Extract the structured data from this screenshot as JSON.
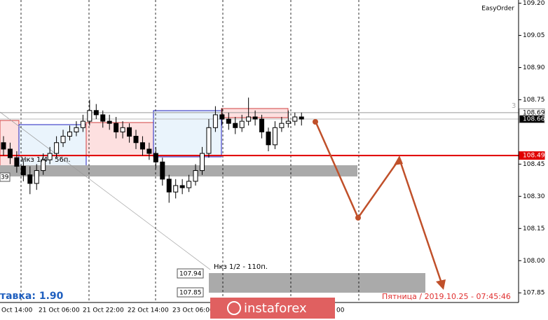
{
  "chart_data": {
    "type": "candlestick",
    "ylim": [
      107.805,
      109.215
    ],
    "yticks": [
      {
        "value": 109.2,
        "label": "109.20"
      },
      {
        "value": 109.05,
        "label": "109.05"
      },
      {
        "value": 108.9,
        "label": "108.90"
      },
      {
        "value": 108.75,
        "label": "108.75"
      },
      {
        "value": 108.45,
        "label": "108.45"
      },
      {
        "value": 108.3,
        "label": "108.30"
      },
      {
        "value": 108.15,
        "label": "108.15"
      },
      {
        "value": 108.0,
        "label": "108.00"
      },
      {
        "value": 107.85,
        "label": "107.85"
      }
    ],
    "x_labels": [
      "Oct 14:00",
      "21 Oct 06:00",
      "21 Oct 22:00",
      "22 Oct 14:00",
      "23 Oct 06:00",
      "00"
    ],
    "open": [
      108.55,
      108.52,
      108.48,
      108.44,
      108.4,
      108.36,
      108.42,
      108.47,
      108.5,
      108.55,
      108.58,
      108.6,
      108.62,
      108.65,
      108.7,
      108.68,
      108.65,
      108.64,
      108.6,
      108.62,
      108.58,
      108.55,
      108.52,
      108.5,
      108.46,
      108.38,
      108.32,
      108.35,
      108.34,
      108.37,
      108.42,
      108.5,
      108.62,
      108.68,
      108.66,
      108.64,
      108.62,
      108.65,
      108.67,
      108.66,
      108.6,
      108.54,
      108.62,
      108.64,
      108.65,
      108.67
    ],
    "high": [
      108.58,
      108.55,
      108.51,
      108.47,
      108.44,
      108.45,
      108.5,
      108.53,
      108.58,
      108.61,
      108.63,
      108.65,
      108.68,
      108.75,
      108.73,
      108.7,
      108.68,
      108.67,
      108.65,
      108.64,
      108.61,
      108.58,
      108.55,
      108.53,
      108.48,
      108.4,
      108.38,
      108.38,
      108.4,
      108.45,
      108.53,
      108.66,
      108.72,
      108.71,
      108.69,
      108.67,
      108.68,
      108.76,
      108.7,
      108.68,
      108.62,
      108.65,
      108.67,
      108.7,
      108.69,
      108.69
    ],
    "low": [
      108.49,
      108.45,
      108.41,
      108.37,
      108.31,
      108.33,
      108.4,
      108.45,
      108.48,
      108.53,
      108.56,
      108.58,
      108.6,
      108.63,
      108.66,
      108.62,
      108.61,
      108.57,
      108.57,
      108.55,
      108.52,
      108.49,
      108.47,
      108.43,
      108.35,
      108.27,
      108.29,
      108.31,
      108.32,
      108.35,
      108.4,
      108.48,
      108.6,
      108.63,
      108.61,
      108.59,
      108.6,
      108.63,
      108.63,
      108.57,
      108.51,
      108.52,
      108.6,
      108.62,
      108.63,
      108.63
    ],
    "close": [
      108.52,
      108.48,
      108.44,
      108.4,
      108.36,
      108.42,
      108.47,
      108.5,
      108.55,
      108.58,
      108.6,
      108.62,
      108.65,
      108.7,
      108.68,
      108.65,
      108.64,
      108.6,
      108.62,
      108.58,
      108.55,
      108.52,
      108.5,
      108.46,
      108.38,
      108.32,
      108.35,
      108.34,
      108.37,
      108.42,
      108.5,
      108.62,
      108.68,
      108.66,
      108.64,
      108.62,
      108.65,
      108.67,
      108.66,
      108.6,
      108.54,
      108.62,
      108.64,
      108.65,
      108.67,
      108.66
    ],
    "price_lines": [
      {
        "value": 108.69,
        "label": "108.69",
        "color": "#999999"
      },
      {
        "value": 108.66,
        "label": "108.66",
        "color": "#bbbbbb"
      },
      {
        "value": 108.49,
        "label": "108.49",
        "color": "#e00000"
      }
    ],
    "annotations": {
      "easyorder": "EasyOrder",
      "level": "3",
      "nkz_1_4": "Нкз 1/4 - 56п.",
      "nkz_1_2": "Нкз 1/2 - 110п.",
      "left_box": "39",
      "box_upper": "107.94",
      "box_lower": "107.85",
      "stake": "тавка: 1.90",
      "datetime": "Пятница / 2019.10.25 - 07:45:46",
      "watermark": "instaforex"
    }
  }
}
